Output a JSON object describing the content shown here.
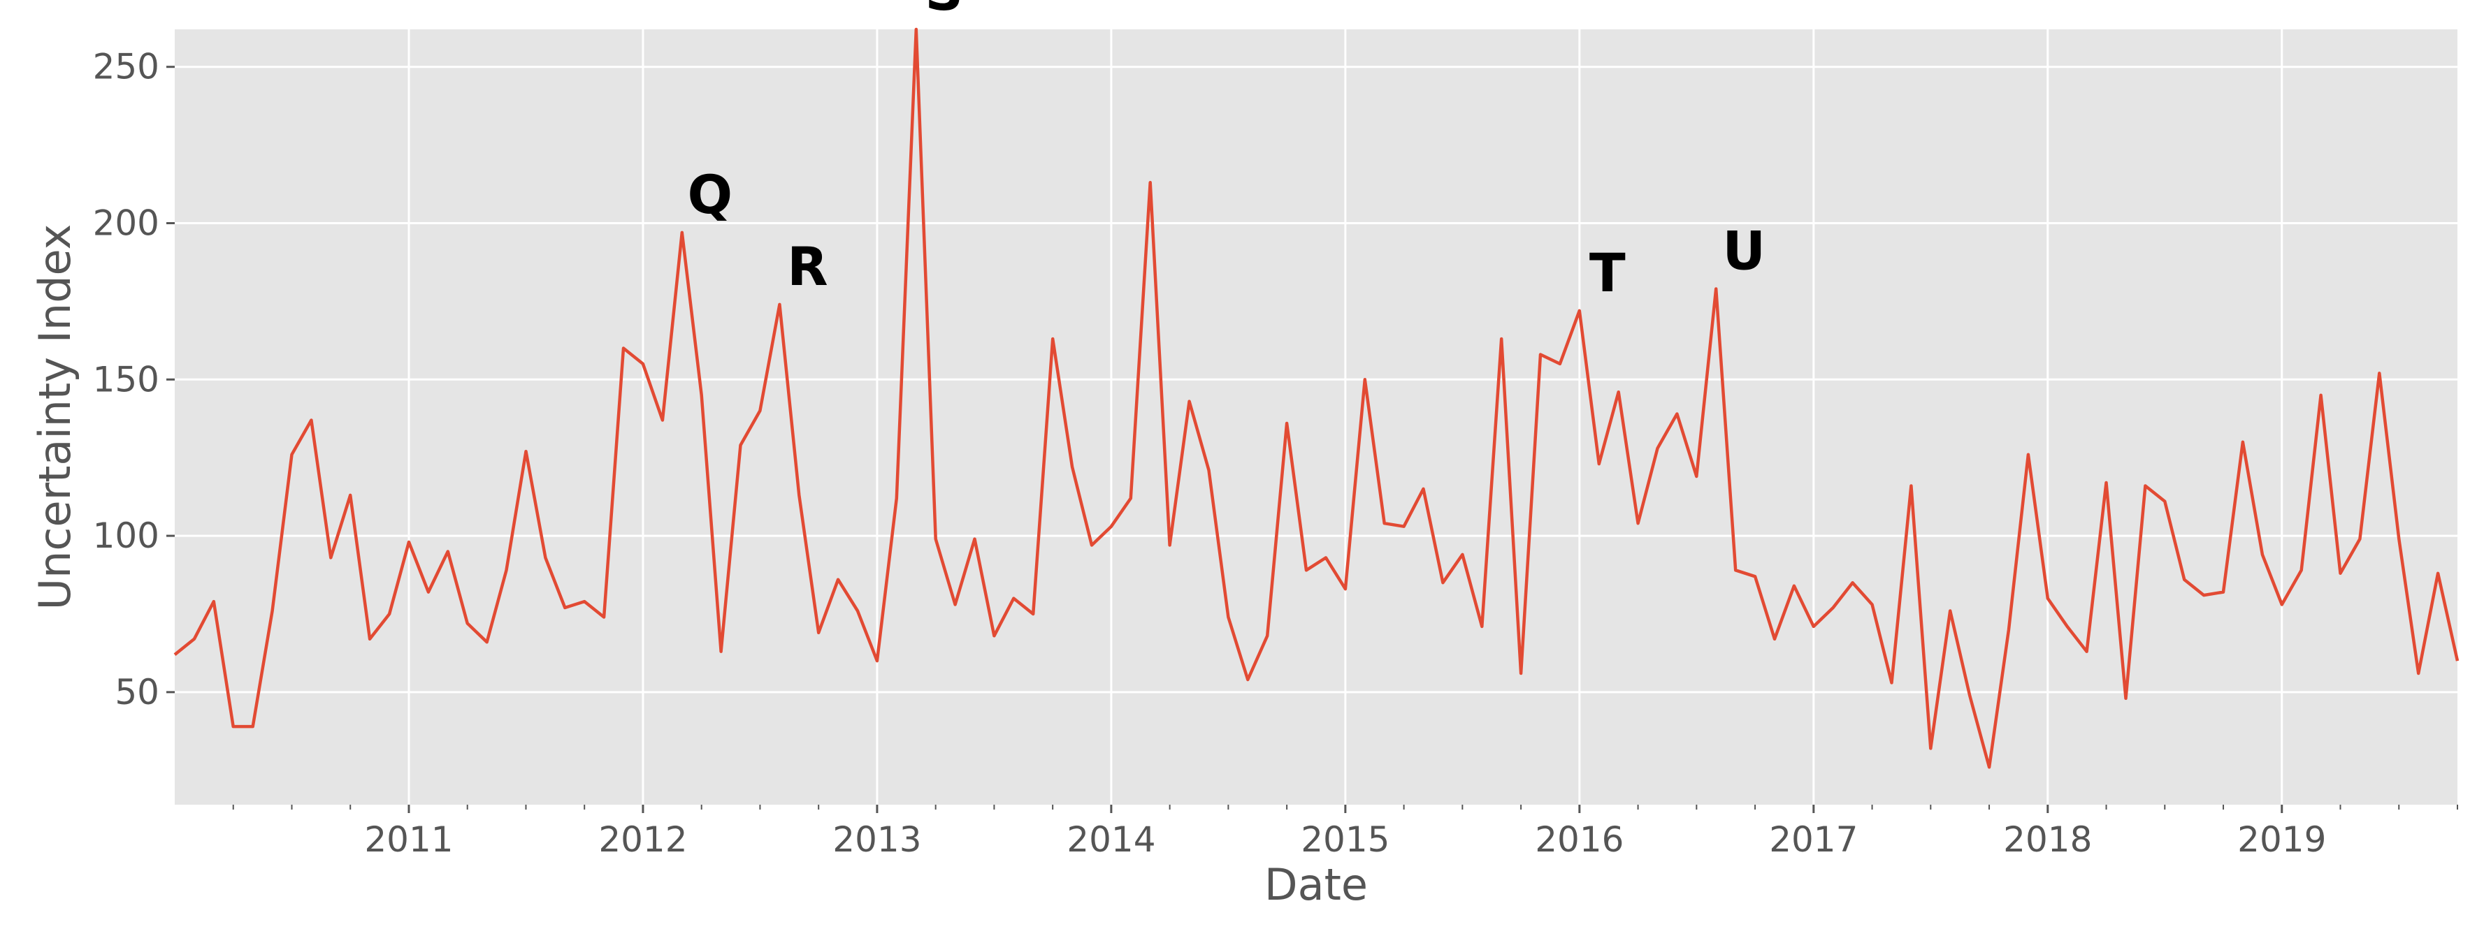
{
  "chart_data": {
    "type": "line",
    "title": "",
    "xlabel": "Date",
    "ylabel": "Uncertainty Index",
    "xlim": [
      "2010-01",
      "2019-10"
    ],
    "ylim": [
      14,
      262
    ],
    "x_ticks": [
      {
        "value": "2011-01",
        "label": "2011"
      },
      {
        "value": "2012-01",
        "label": "2012"
      },
      {
        "value": "2013-01",
        "label": "2013"
      },
      {
        "value": "2014-01",
        "label": "2014"
      },
      {
        "value": "2015-01",
        "label": "2015"
      },
      {
        "value": "2016-01",
        "label": "2016"
      },
      {
        "value": "2017-01",
        "label": "2017"
      },
      {
        "value": "2018-01",
        "label": "2018"
      },
      {
        "value": "2019-01",
        "label": "2019"
      }
    ],
    "y_ticks": [
      50,
      100,
      150,
      200,
      250
    ],
    "grid": true,
    "colors": {
      "line": "#e24a33",
      "background": "#e5e5e5",
      "grid": "#ffffff",
      "tick_text": "#555555"
    },
    "series": [
      {
        "x": [
          "2010-01",
          "2010-02",
          "2010-03",
          "2010-04",
          "2010-05",
          "2010-06",
          "2010-07",
          "2010-08",
          "2010-09",
          "2010-10",
          "2010-11",
          "2010-12",
          "2011-01",
          "2011-02",
          "2011-03",
          "2011-04",
          "2011-05",
          "2011-06",
          "2011-07",
          "2011-08",
          "2011-09",
          "2011-10",
          "2011-11",
          "2011-12",
          "2012-01",
          "2012-02",
          "2012-03",
          "2012-04",
          "2012-05",
          "2012-06",
          "2012-07",
          "2012-08",
          "2012-09",
          "2012-10",
          "2012-11",
          "2012-12",
          "2013-01",
          "2013-02",
          "2013-03",
          "2013-04",
          "2013-05",
          "2013-06",
          "2013-07",
          "2013-08",
          "2013-09",
          "2013-10",
          "2013-11",
          "2013-12",
          "2014-01",
          "2014-02",
          "2014-03",
          "2014-04",
          "2014-05",
          "2014-06",
          "2014-07",
          "2014-08",
          "2014-09",
          "2014-10",
          "2014-11",
          "2014-12",
          "2015-01",
          "2015-02",
          "2015-03",
          "2015-04",
          "2015-05",
          "2015-06",
          "2015-07",
          "2015-08",
          "2015-09",
          "2015-10",
          "2015-11",
          "2015-12",
          "2016-01",
          "2016-02",
          "2016-03",
          "2016-04",
          "2016-05",
          "2016-06",
          "2016-07",
          "2016-08",
          "2016-09",
          "2016-10",
          "2016-11",
          "2016-12",
          "2017-01",
          "2017-02",
          "2017-03",
          "2017-04",
          "2017-05",
          "2017-06",
          "2017-07",
          "2017-08",
          "2017-09",
          "2017-10",
          "2017-11",
          "2017-12",
          "2018-01",
          "2018-02",
          "2018-03",
          "2018-04",
          "2018-05",
          "2018-06",
          "2018-07",
          "2018-08",
          "2018-09",
          "2018-10",
          "2018-11",
          "2018-12",
          "2019-01",
          "2019-02",
          "2019-03",
          "2019-04",
          "2019-05",
          "2019-06",
          "2019-07",
          "2019-08",
          "2019-09",
          "2019-10"
        ],
        "values": [
          62,
          67,
          79,
          39,
          39,
          76,
          126,
          137,
          93,
          113,
          67,
          75,
          98,
          82,
          95,
          72,
          66,
          89,
          127,
          93,
          77,
          79,
          74,
          160,
          155,
          137,
          197,
          145,
          63,
          129,
          140,
          174,
          113,
          69,
          86,
          76,
          60,
          112,
          262,
          99,
          78,
          99,
          68,
          80,
          75,
          163,
          122,
          97,
          103,
          112,
          213,
          97,
          143,
          121,
          74,
          54,
          68,
          136,
          89,
          93,
          83,
          150,
          104,
          103,
          115,
          85,
          94,
          71,
          163,
          56,
          158,
          155,
          172,
          123,
          146,
          104,
          128,
          139,
          119,
          179,
          89,
          87,
          67,
          84,
          71,
          77,
          85,
          78,
          53,
          116,
          32,
          76,
          49,
          26,
          70,
          126,
          80,
          71,
          63,
          117,
          48,
          116,
          111,
          86,
          81,
          82,
          130,
          94,
          78,
          89,
          145,
          88,
          99,
          152,
          99,
          56,
          88,
          60
        ]
      }
    ],
    "annotations": [
      {
        "text": "Q",
        "x": "2012-03",
        "y": 197
      },
      {
        "text": "R",
        "x": "2012-08",
        "y": 174
      },
      {
        "text": "S",
        "x": "2013-03",
        "y": 262
      },
      {
        "text": "T",
        "x": "2016-01",
        "y": 172
      },
      {
        "text": "U",
        "x": "2016-08",
        "y": 179
      }
    ]
  }
}
